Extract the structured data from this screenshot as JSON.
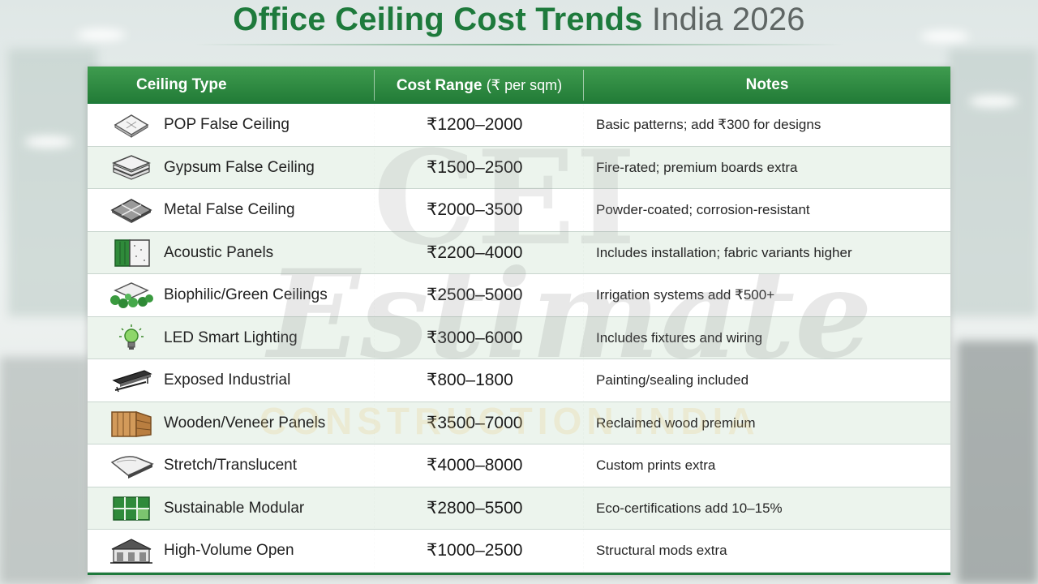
{
  "title": {
    "main": "Office Ceiling Cost Trends",
    "sub": "India 2026"
  },
  "table": {
    "headers": {
      "type": "Ceiling Type",
      "cost": "Cost Range",
      "cost_unit": "(₹ per sqm)",
      "notes": "Notes"
    },
    "rows": [
      {
        "type": "POP False Ceiling",
        "cost": "₹1200–2000",
        "note": "Basic patterns; add ₹300 for designs",
        "icon": "pop-panel-icon"
      },
      {
        "type": "Gypsum False Ceiling",
        "cost": "₹1500–2500",
        "note": "Fire-rated; premium boards extra",
        "icon": "gypsum-boards-icon"
      },
      {
        "type": "Metal False Ceiling",
        "cost": "₹2000–3500",
        "note": "Powder-coated; corrosion-resistant",
        "icon": "metal-tiles-icon"
      },
      {
        "type": "Acoustic Panels",
        "cost": "₹2200–4000",
        "note": "Includes installation; fabric variants higher",
        "icon": "acoustic-panel-icon"
      },
      {
        "type": "Biophilic/Green Ceilings",
        "cost": "₹2500–5000",
        "note": "Irrigation systems add ₹500+",
        "icon": "plant-ceiling-icon"
      },
      {
        "type": "LED Smart Lighting",
        "cost": "₹3000–6000",
        "note": "Includes fixtures and wiring",
        "icon": "light-bulb-icon"
      },
      {
        "type": "Exposed Industrial",
        "cost": "₹800–1800",
        "note": "Painting/sealing included",
        "icon": "industrial-beam-icon"
      },
      {
        "type": "Wooden/Veneer Panels",
        "cost": "₹3500–7000",
        "note": "Reclaimed wood premium",
        "icon": "wood-panel-icon"
      },
      {
        "type": "Stretch/Translucent",
        "cost": "₹4000–8000",
        "note": "Custom prints extra",
        "icon": "stretch-membrane-icon"
      },
      {
        "type": "Sustainable Modular",
        "cost": "₹2800–5500",
        "note": "Eco-certifications add 10–15%",
        "icon": "modular-grid-icon"
      },
      {
        "type": "High-Volume Open",
        "cost": "₹1000–2500",
        "note": "Structural mods extra",
        "icon": "warehouse-icon"
      }
    ]
  },
  "watermark": {
    "line1": "CEI",
    "line2": "Estimate",
    "line3": "CONSTRUCTION INDIA"
  },
  "colors": {
    "brand_green": "#1e7a3c",
    "header_green": "#2f8a42",
    "subtitle_grey": "#5f6664"
  }
}
